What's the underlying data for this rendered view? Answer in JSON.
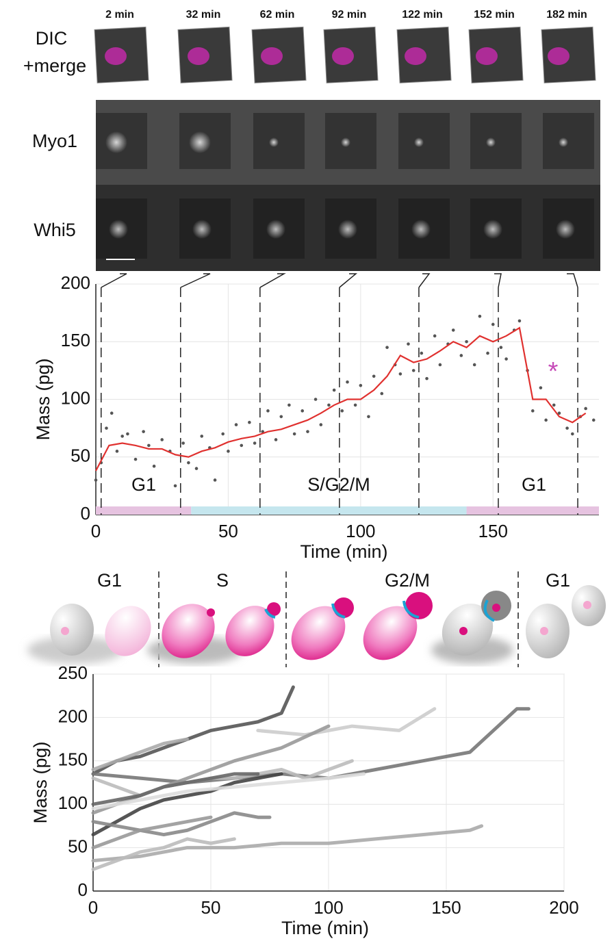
{
  "microscopy": {
    "time_labels": [
      "2 min",
      "32 min",
      "62 min",
      "92 min",
      "122 min",
      "152 min",
      "182 min"
    ],
    "dic_label": [
      "DIC",
      "+merge"
    ],
    "myo1_label": "Myo1",
    "whi5_label": "Whi5"
  },
  "chart_data": [
    {
      "type": "scatter",
      "xlabel": "Time (min)",
      "ylabel": "Mass (pg)",
      "xlim": [
        0,
        190
      ],
      "ylim": [
        0,
        200
      ],
      "xticks": [
        0,
        50,
        100,
        150
      ],
      "yticks": [
        0,
        50,
        100,
        150,
        200
      ],
      "grid": true,
      "frame_times": [
        2,
        32,
        62,
        92,
        122,
        152,
        182
      ],
      "phase_bar": [
        {
          "start": 0,
          "end": 36,
          "color": "#e6c3e0"
        },
        {
          "start": 36,
          "end": 140,
          "color": "#c5e6ee"
        },
        {
          "start": 140,
          "end": 190,
          "color": "#e6c3e0"
        }
      ],
      "annotations": [
        "G1",
        "S/G2/M",
        "G1",
        "*"
      ],
      "series": [
        {
          "type": "scatter",
          "color": "#555555",
          "x": [
            0,
            2,
            4,
            6,
            8,
            10,
            12,
            15,
            18,
            20,
            22,
            25,
            28,
            30,
            33,
            35,
            38,
            40,
            43,
            45,
            48,
            50,
            53,
            55,
            58,
            60,
            63,
            65,
            68,
            70,
            73,
            75,
            78,
            80,
            83,
            85,
            88,
            90,
            93,
            95,
            98,
            100,
            103,
            105,
            108,
            110,
            113,
            115,
            118,
            120,
            123,
            125,
            128,
            130,
            133,
            135,
            138,
            140,
            143,
            145,
            148,
            150,
            153,
            155,
            158,
            160,
            163,
            165,
            168,
            170,
            173,
            175,
            178,
            180,
            183,
            185,
            188
          ],
          "values": [
            30,
            45,
            75,
            88,
            55,
            68,
            70,
            48,
            72,
            60,
            42,
            65,
            55,
            25,
            62,
            45,
            40,
            68,
            58,
            30,
            70,
            55,
            78,
            60,
            80,
            62,
            72,
            90,
            65,
            85,
            95,
            70,
            90,
            72,
            100,
            78,
            95,
            108,
            90,
            115,
            95,
            112,
            85,
            120,
            105,
            145,
            130,
            122,
            148,
            125,
            140,
            118,
            155,
            130,
            148,
            160,
            138,
            150,
            130,
            172,
            140,
            165,
            145,
            135,
            160,
            168,
            125,
            90,
            110,
            82,
            95,
            88,
            75,
            70,
            85,
            92,
            82
          ]
        },
        {
          "type": "line",
          "color": "#e0312f",
          "x": [
            0,
            5,
            10,
            15,
            20,
            25,
            30,
            35,
            40,
            45,
            50,
            55,
            60,
            65,
            70,
            75,
            80,
            85,
            90,
            95,
            100,
            105,
            110,
            115,
            120,
            125,
            130,
            135,
            140,
            145,
            150,
            155,
            160,
            165,
            170,
            175,
            180,
            185
          ],
          "values": [
            38,
            60,
            62,
            60,
            57,
            57,
            52,
            50,
            55,
            58,
            63,
            66,
            68,
            72,
            74,
            78,
            82,
            88,
            95,
            100,
            100,
            108,
            120,
            138,
            132,
            135,
            142,
            150,
            145,
            155,
            150,
            155,
            162,
            100,
            100,
            85,
            80,
            88
          ]
        }
      ]
    },
    {
      "type": "line",
      "xlabel": "Time (min)",
      "ylabel": "Mass (pg)",
      "xlim": [
        0,
        200
      ],
      "ylim": [
        0,
        250
      ],
      "xticks": [
        0,
        50,
        100,
        150,
        200
      ],
      "yticks": [
        0,
        50,
        100,
        150,
        200,
        250
      ],
      "grid": true,
      "series": [
        {
          "color": "#555555",
          "x": [
            0,
            10,
            20,
            30,
            40,
            50,
            60,
            70,
            80,
            85
          ],
          "values": [
            135,
            150,
            155,
            165,
            175,
            185,
            190,
            195,
            205,
            235
          ]
        },
        {
          "color": "#777777",
          "x": [
            0,
            20,
            40,
            60,
            80,
            100,
            120,
            140,
            160,
            170,
            180,
            185
          ],
          "values": [
            135,
            130,
            125,
            130,
            135,
            130,
            140,
            150,
            160,
            185,
            210,
            210
          ]
        },
        {
          "color": "#cccccc",
          "x": [
            70,
            90,
            110,
            130,
            145
          ],
          "values": [
            185,
            180,
            190,
            185,
            210
          ]
        },
        {
          "color": "#999999",
          "x": [
            0,
            20,
            40,
            60,
            80,
            100
          ],
          "values": [
            90,
            110,
            130,
            150,
            165,
            190
          ]
        },
        {
          "color": "#bbbbbb",
          "x": [
            0,
            10,
            20,
            30,
            40,
            50,
            60,
            70,
            80,
            90,
            100,
            110
          ],
          "values": [
            130,
            120,
            110,
            120,
            125,
            130,
            130,
            135,
            140,
            130,
            140,
            150
          ]
        },
        {
          "color": "#444444",
          "x": [
            0,
            10,
            20,
            30,
            40,
            50,
            60,
            70,
            80
          ],
          "values": [
            65,
            80,
            95,
            105,
            110,
            115,
            125,
            130,
            135
          ]
        },
        {
          "color": "#aaaaaa",
          "x": [
            0,
            20,
            40,
            60,
            80,
            100,
            120,
            140,
            160,
            165
          ],
          "values": [
            35,
            40,
            50,
            50,
            55,
            55,
            60,
            65,
            70,
            75
          ]
        },
        {
          "color": "#888888",
          "x": [
            0,
            10,
            20,
            30,
            40,
            50,
            60,
            70,
            75
          ],
          "values": [
            80,
            75,
            70,
            65,
            70,
            80,
            90,
            85,
            85
          ]
        },
        {
          "color": "#bbbbbb",
          "x": [
            0,
            10,
            20,
            30,
            40,
            50,
            60
          ],
          "values": [
            25,
            35,
            45,
            50,
            60,
            55,
            60
          ]
        },
        {
          "color": "#666666",
          "x": [
            0,
            10,
            20,
            30,
            40,
            50,
            60,
            70
          ],
          "values": [
            100,
            105,
            110,
            120,
            125,
            130,
            135,
            135
          ]
        },
        {
          "color": "#dddddd",
          "x": [
            0,
            20,
            40,
            60,
            80,
            100,
            115
          ],
          "values": [
            95,
            105,
            115,
            120,
            125,
            130,
            135
          ]
        },
        {
          "color": "#999999",
          "x": [
            0,
            10,
            20,
            30,
            40,
            50
          ],
          "values": [
            50,
            60,
            70,
            75,
            80,
            85
          ]
        },
        {
          "color": "#aaaaaa",
          "x": [
            0,
            10,
            20,
            30,
            40
          ],
          "values": [
            140,
            150,
            160,
            170,
            175
          ]
        }
      ]
    }
  ],
  "cell_cycle_diagram": {
    "phases": [
      "G1",
      "S",
      "G2/M",
      "G1"
    ]
  }
}
